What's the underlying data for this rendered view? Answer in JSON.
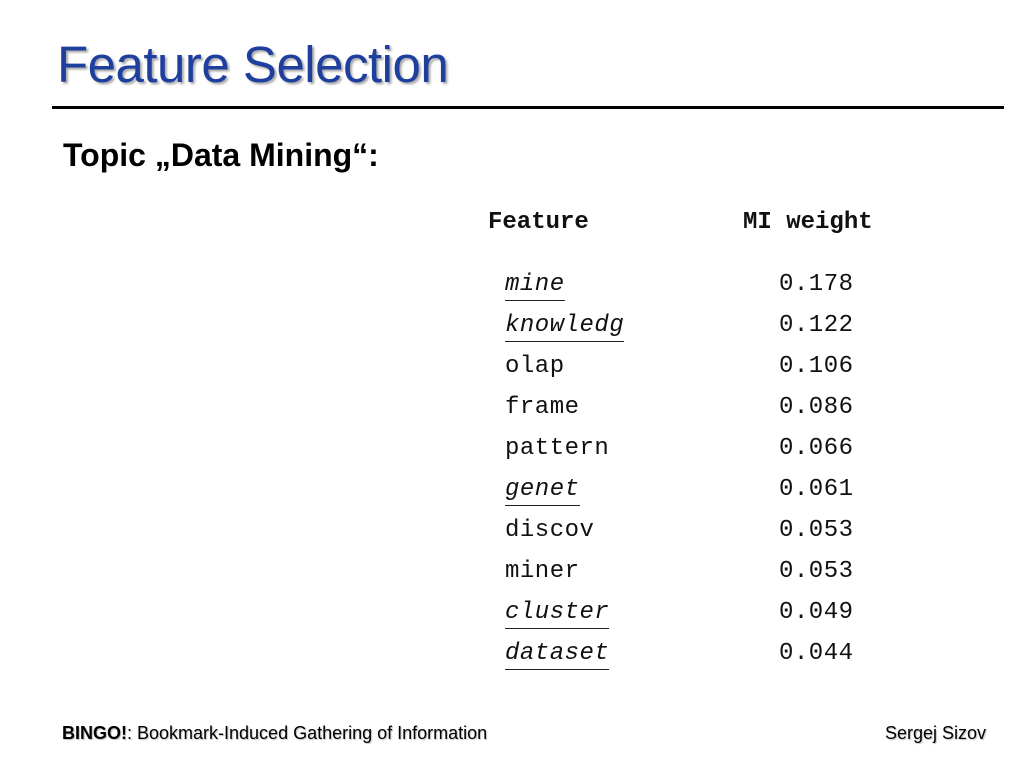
{
  "slide": {
    "title": "Feature Selection",
    "topic": "Topic „Data Mining“:"
  },
  "table": {
    "headers": {
      "feature": "Feature",
      "weight": "MI weight"
    },
    "rows": [
      {
        "feature": "mine",
        "weight": "0.178",
        "highlighted": true
      },
      {
        "feature": "knowledg",
        "weight": "0.122",
        "highlighted": true
      },
      {
        "feature": "olap",
        "weight": "0.106",
        "highlighted": false
      },
      {
        "feature": "frame",
        "weight": "0.086",
        "highlighted": false
      },
      {
        "feature": "pattern",
        "weight": "0.066",
        "highlighted": false
      },
      {
        "feature": "genet",
        "weight": "0.061",
        "highlighted": true
      },
      {
        "feature": "discov",
        "weight": "0.053",
        "highlighted": false
      },
      {
        "feature": "miner",
        "weight": "0.053",
        "highlighted": false
      },
      {
        "feature": "cluster",
        "weight": "0.049",
        "highlighted": true
      },
      {
        "feature": "dataset",
        "weight": "0.044",
        "highlighted": true
      }
    ]
  },
  "footer": {
    "brand": "BINGO!",
    "tagline": ": Bookmark-Induced Gathering of Information",
    "author": "Sergej Sizov"
  },
  "colors": {
    "title": "#1f3f9f",
    "text": "#000000",
    "rule": "#000000"
  }
}
